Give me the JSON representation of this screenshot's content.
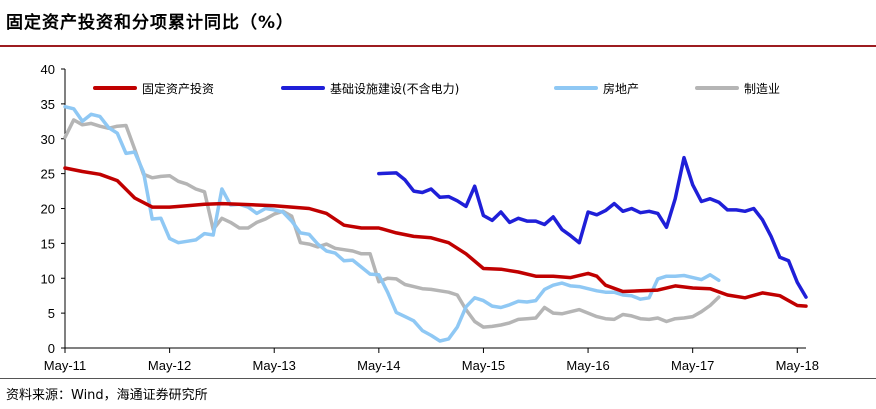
{
  "title": "固定资产投资和分项累计同比（%）",
  "source": "资料来源：Wind，海通证券研究所",
  "colors": {
    "fai": "#c00000",
    "infra": "#1f1fd8",
    "realestate": "#8fc8f4",
    "manufacturing": "#b5b5b5",
    "rule": "#9d1c20"
  },
  "chart_data": {
    "type": "line",
    "title": "固定资产投资和分项累计同比（%）",
    "xlabel": "",
    "ylabel": "%",
    "ylim": [
      0,
      40
    ],
    "yticks": [
      "0",
      "5",
      "10",
      "15",
      "20",
      "25",
      "30",
      "35",
      "40"
    ],
    "xlim": [
      0,
      85
    ],
    "xticks": [
      {
        "label": "May-11",
        "x": 0
      },
      {
        "label": "May-12",
        "x": 12
      },
      {
        "label": "May-13",
        "x": 24
      },
      {
        "label": "May-14",
        "x": 36
      },
      {
        "label": "May-15",
        "x": 48
      },
      {
        "label": "May-16",
        "x": 60
      },
      {
        "label": "May-17",
        "x": 72
      },
      {
        "label": "May-18",
        "x": 84
      }
    ],
    "series": [
      {
        "name": "固定资产投资",
        "key": "fai",
        "points": [
          [
            0,
            25.8
          ],
          [
            2,
            25.3
          ],
          [
            4,
            24.9
          ],
          [
            6,
            24.0
          ],
          [
            8,
            21.5
          ],
          [
            10,
            20.2
          ],
          [
            12,
            20.2
          ],
          [
            14,
            20.4
          ],
          [
            16,
            20.6
          ],
          [
            18,
            20.7
          ],
          [
            20,
            20.6
          ],
          [
            22,
            20.5
          ],
          [
            24,
            20.4
          ],
          [
            26,
            20.2
          ],
          [
            28,
            20.0
          ],
          [
            30,
            19.3
          ],
          [
            32,
            17.6
          ],
          [
            34,
            17.2
          ],
          [
            36,
            17.2
          ],
          [
            38,
            16.5
          ],
          [
            40,
            16.0
          ],
          [
            42,
            15.8
          ],
          [
            44,
            15.1
          ],
          [
            46,
            13.5
          ],
          [
            48,
            11.4
          ],
          [
            50,
            11.3
          ],
          [
            52,
            10.9
          ],
          [
            54,
            10.3
          ],
          [
            56,
            10.3
          ],
          [
            58,
            10.1
          ],
          [
            60,
            10.7
          ],
          [
            61,
            10.3
          ],
          [
            62,
            9.0
          ],
          [
            64,
            8.1
          ],
          [
            66,
            8.2
          ],
          [
            68,
            8.3
          ],
          [
            70,
            8.9
          ],
          [
            72,
            8.6
          ],
          [
            74,
            8.5
          ],
          [
            76,
            7.6
          ],
          [
            78,
            7.2
          ],
          [
            80,
            7.9
          ],
          [
            82,
            7.5
          ],
          [
            84,
            6.1
          ],
          [
            85,
            6.0
          ]
        ]
      },
      {
        "name": "基础设施建设(不含电力)",
        "key": "infra",
        "points": [
          [
            36,
            25.0
          ],
          [
            38,
            25.1
          ],
          [
            39,
            24.1
          ],
          [
            40,
            22.5
          ],
          [
            41,
            22.3
          ],
          [
            42,
            22.8
          ],
          [
            43,
            21.6
          ],
          [
            44,
            21.7
          ],
          [
            45,
            21.1
          ],
          [
            46,
            20.3
          ],
          [
            47,
            23.2
          ],
          [
            48,
            19.0
          ],
          [
            49,
            18.3
          ],
          [
            50,
            19.5
          ],
          [
            51,
            18.0
          ],
          [
            52,
            18.6
          ],
          [
            53,
            18.2
          ],
          [
            54,
            18.2
          ],
          [
            55,
            17.7
          ],
          [
            56,
            18.8
          ],
          [
            57,
            17.0
          ],
          [
            58,
            16.1
          ],
          [
            59,
            15.1
          ],
          [
            60,
            19.5
          ],
          [
            61,
            19.1
          ],
          [
            62,
            19.7
          ],
          [
            63,
            20.7
          ],
          [
            64,
            19.6
          ],
          [
            65,
            20.0
          ],
          [
            66,
            19.4
          ],
          [
            67,
            19.6
          ],
          [
            68,
            19.3
          ],
          [
            69,
            17.3
          ],
          [
            70,
            21.4
          ],
          [
            71,
            27.3
          ],
          [
            72,
            23.4
          ],
          [
            73,
            21.0
          ],
          [
            74,
            21.4
          ],
          [
            75,
            20.9
          ],
          [
            76,
            19.8
          ],
          [
            77,
            19.8
          ],
          [
            78,
            19.6
          ],
          [
            79,
            20.0
          ],
          [
            80,
            18.4
          ],
          [
            81,
            16.0
          ],
          [
            82,
            13.0
          ],
          [
            83,
            12.5
          ],
          [
            84,
            9.4
          ],
          [
            85,
            7.3
          ]
        ]
      },
      {
        "name": "房地产",
        "key": "realestate",
        "points": [
          [
            0,
            34.6
          ],
          [
            1,
            34.3
          ],
          [
            2,
            32.5
          ],
          [
            3,
            33.5
          ],
          [
            4,
            33.2
          ],
          [
            5,
            31.6
          ],
          [
            6,
            30.8
          ],
          [
            7,
            27.9
          ],
          [
            8,
            28.1
          ],
          [
            9,
            25.2
          ],
          [
            10,
            18.5
          ],
          [
            11,
            18.6
          ],
          [
            12,
            15.7
          ],
          [
            13,
            15.1
          ],
          [
            14,
            15.3
          ],
          [
            15,
            15.5
          ],
          [
            16,
            16.4
          ],
          [
            17,
            16.2
          ],
          [
            18,
            22.8
          ],
          [
            19,
            20.5
          ],
          [
            20,
            20.6
          ],
          [
            21,
            20.2
          ],
          [
            22,
            19.3
          ],
          [
            23,
            20.0
          ],
          [
            24,
            19.8
          ],
          [
            25,
            19.5
          ],
          [
            26,
            18.2
          ],
          [
            27,
            16.5
          ],
          [
            28,
            16.3
          ],
          [
            29,
            14.9
          ],
          [
            30,
            13.9
          ],
          [
            31,
            13.6
          ],
          [
            32,
            12.5
          ],
          [
            33,
            12.6
          ],
          [
            34,
            11.6
          ],
          [
            35,
            10.6
          ],
          [
            36,
            10.5
          ],
          [
            37,
            8.0
          ],
          [
            38,
            5.1
          ],
          [
            39,
            4.5
          ],
          [
            40,
            3.9
          ],
          [
            41,
            2.5
          ],
          [
            42,
            1.8
          ],
          [
            43,
            1.0
          ],
          [
            44,
            1.3
          ],
          [
            45,
            3.0
          ],
          [
            46,
            5.9
          ],
          [
            47,
            7.2
          ],
          [
            48,
            6.8
          ],
          [
            49,
            6.0
          ],
          [
            50,
            5.8
          ],
          [
            51,
            6.2
          ],
          [
            52,
            6.7
          ],
          [
            53,
            6.6
          ],
          [
            54,
            6.8
          ],
          [
            55,
            8.4
          ],
          [
            56,
            9.0
          ],
          [
            57,
            9.3
          ],
          [
            58,
            8.9
          ],
          [
            59,
            8.8
          ],
          [
            60,
            8.5
          ],
          [
            61,
            8.2
          ],
          [
            62,
            8.0
          ],
          [
            63,
            8.0
          ],
          [
            64,
            7.6
          ],
          [
            65,
            7.5
          ],
          [
            66,
            7.0
          ],
          [
            67,
            7.2
          ],
          [
            68,
            9.9
          ],
          [
            69,
            10.3
          ],
          [
            70,
            10.3
          ],
          [
            71,
            10.4
          ],
          [
            72,
            10.1
          ],
          [
            73,
            9.8
          ],
          [
            74,
            10.5
          ],
          [
            75,
            9.7
          ]
        ]
      },
      {
        "name": "制造业",
        "key": "manufacturing",
        "points": [
          [
            0,
            30.2
          ],
          [
            1,
            32.7
          ],
          [
            2,
            32.0
          ],
          [
            3,
            32.2
          ],
          [
            4,
            31.8
          ],
          [
            5,
            31.5
          ],
          [
            6,
            31.8
          ],
          [
            7,
            31.9
          ],
          [
            8,
            28.5
          ],
          [
            9,
            24.9
          ],
          [
            10,
            24.4
          ],
          [
            11,
            24.6
          ],
          [
            12,
            24.7
          ],
          [
            13,
            23.9
          ],
          [
            14,
            23.5
          ],
          [
            15,
            22.8
          ],
          [
            16,
            22.4
          ],
          [
            17,
            17.0
          ],
          [
            18,
            18.6
          ],
          [
            19,
            18.0
          ],
          [
            20,
            17.2
          ],
          [
            21,
            17.2
          ],
          [
            22,
            18.0
          ],
          [
            23,
            18.5
          ],
          [
            24,
            19.2
          ],
          [
            25,
            19.6
          ],
          [
            26,
            18.9
          ],
          [
            27,
            15.1
          ],
          [
            28,
            14.9
          ],
          [
            29,
            14.5
          ],
          [
            30,
            14.9
          ],
          [
            31,
            14.3
          ],
          [
            32,
            14.1
          ],
          [
            33,
            13.9
          ],
          [
            34,
            13.5
          ],
          [
            35,
            13.5
          ],
          [
            36,
            9.5
          ],
          [
            37,
            10.0
          ],
          [
            38,
            9.9
          ],
          [
            39,
            9.1
          ],
          [
            40,
            8.8
          ],
          [
            41,
            8.5
          ],
          [
            42,
            8.4
          ],
          [
            43,
            8.2
          ],
          [
            44,
            8.0
          ],
          [
            45,
            7.6
          ],
          [
            46,
            5.5
          ],
          [
            47,
            3.8
          ],
          [
            48,
            3.0
          ],
          [
            49,
            3.1
          ],
          [
            50,
            3.3
          ],
          [
            51,
            3.6
          ],
          [
            52,
            4.1
          ],
          [
            53,
            4.2
          ],
          [
            54,
            4.3
          ],
          [
            55,
            5.8
          ],
          [
            56,
            5.0
          ],
          [
            57,
            4.9
          ],
          [
            58,
            5.2
          ],
          [
            59,
            5.5
          ],
          [
            60,
            5.0
          ],
          [
            61,
            4.5
          ],
          [
            62,
            4.2
          ],
          [
            63,
            4.1
          ],
          [
            64,
            4.8
          ],
          [
            65,
            4.6
          ],
          [
            66,
            4.2
          ],
          [
            67,
            4.1
          ],
          [
            68,
            4.3
          ],
          [
            69,
            3.8
          ],
          [
            70,
            4.2
          ],
          [
            71,
            4.3
          ],
          [
            72,
            4.5
          ],
          [
            73,
            5.2
          ],
          [
            74,
            6.1
          ],
          [
            75,
            7.3
          ]
        ]
      }
    ],
    "legend": [
      {
        "label": "固定资产投资",
        "key": "fai"
      },
      {
        "label": "基础设施建设(不含电力)",
        "key": "infra"
      },
      {
        "label": "房地产",
        "key": "realestate"
      },
      {
        "label": "制造业",
        "key": "manufacturing"
      }
    ],
    "legend_position": "top",
    "grid": false
  }
}
